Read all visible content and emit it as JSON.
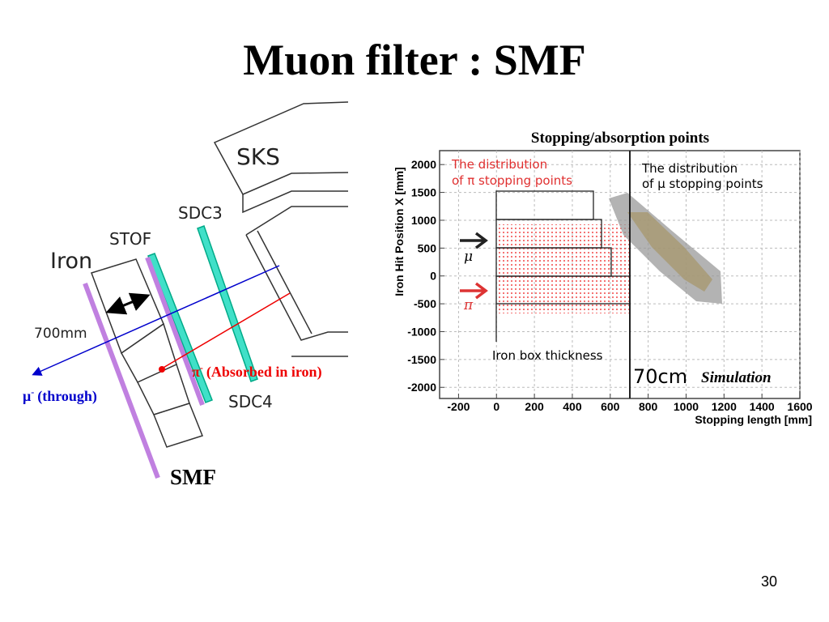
{
  "title": "Muon filter : SMF",
  "page_number": "30",
  "diagram": {
    "sks": "SKS",
    "sdc3": "SDC3",
    "stof": "STOF",
    "iron": "Iron",
    "length": "700mm",
    "sdc4": "SDC4",
    "smf": "SMF",
    "pi_label": {
      "symbol": "π",
      "charge": "-",
      "text": "(Absorbed in iron)"
    },
    "mu_label": {
      "symbol": "μ",
      "charge": "-",
      "text": "(through)"
    }
  },
  "chart_data": {
    "type": "scatter",
    "title": "Stopping/absorption points",
    "x_label": "Stopping length [mm]",
    "y_label": "Iron Hit Position X [mm]",
    "xlim": [
      -300,
      1600
    ],
    "ylim": [
      -2200,
      2250
    ],
    "xticks": [
      -200,
      0,
      200,
      400,
      600,
      800,
      1000,
      1200,
      1400,
      1600
    ],
    "yticks": [
      -2000,
      -1500,
      -1000,
      -500,
      0,
      500,
      1000,
      1500,
      2000
    ],
    "grid": true,
    "annotations": {
      "pi_dist": [
        "The distribution",
        "of π stopping points"
      ],
      "mu_dist": [
        "The distribution",
        "of μ stopping points"
      ],
      "box": "Iron box thickness",
      "cut": "70cm",
      "sim": "Simulation",
      "mu_arrow": "μ",
      "pi_arrow": "π"
    }
  }
}
